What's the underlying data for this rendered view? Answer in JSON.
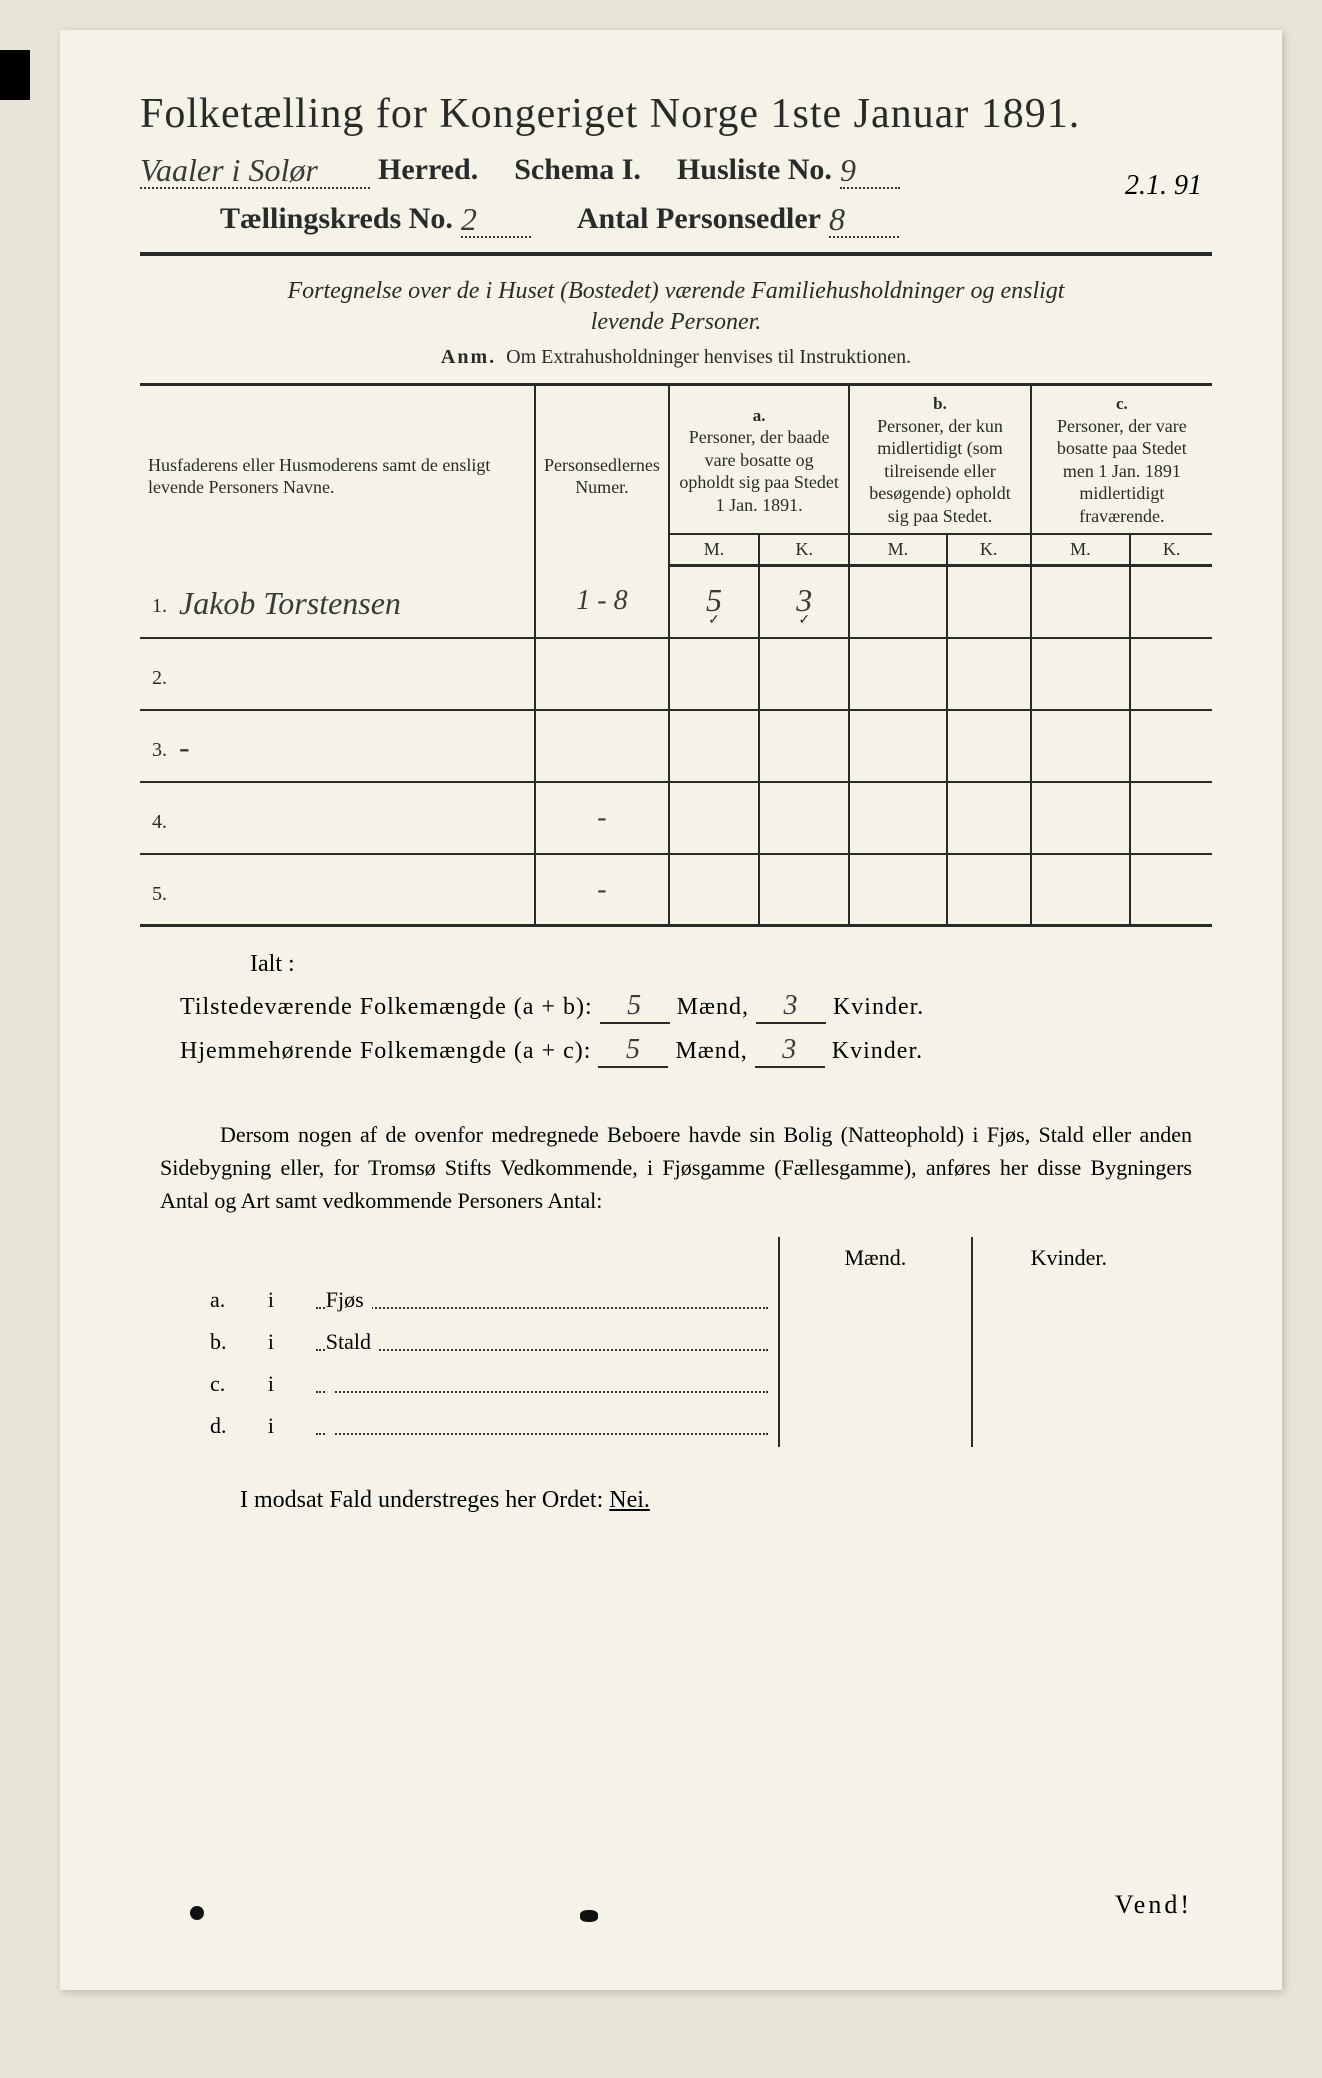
{
  "title": "Folketælling for Kongeriget Norge 1ste Januar 1891.",
  "header": {
    "herred_value": "Vaaler i Solør",
    "herred_label": "Herred.",
    "schema_label": "Schema I.",
    "husliste_label": "Husliste No.",
    "husliste_value": "9",
    "kreds_label": "Tællingskreds No.",
    "kreds_value": "2",
    "personsedler_label": "Antal Personsedler",
    "personsedler_value": "8",
    "date_annotation": "2.1. 91"
  },
  "subtitle_line1": "Fortegnelse over de i Huset (Bostedet) værende Familiehusholdninger og ensligt",
  "subtitle_line2": "levende Personer.",
  "anm_label": "Anm.",
  "anm_text": "Om Extrahusholdninger henvises til Instruktionen.",
  "table": {
    "col_name": "Husfaderens eller Husmoderens samt de ensligt levende Personers Navne.",
    "col_num": "Personsedlernes Numer.",
    "col_a_label": "a.",
    "col_a_text": "Personer, der baade vare bosatte og opholdt sig paa Stedet 1 Jan. 1891.",
    "col_b_label": "b.",
    "col_b_text": "Personer, der kun midlertidigt (som tilreisende eller besøgende) opholdt sig paa Stedet.",
    "col_c_label": "c.",
    "col_c_text": "Personer, der vare bosatte paa Stedet men 1 Jan. 1891 midlertidigt fraværende.",
    "mk_m": "M.",
    "mk_k": "K.",
    "rows": [
      {
        "n": "1.",
        "name": "Jakob Torstensen",
        "num": "1 - 8",
        "a_m": "5",
        "a_k": "3",
        "b_m": "",
        "b_k": "",
        "c_m": "",
        "c_k": ""
      },
      {
        "n": "2.",
        "name": "",
        "num": "",
        "a_m": "",
        "a_k": "",
        "b_m": "",
        "b_k": "",
        "c_m": "",
        "c_k": ""
      },
      {
        "n": "3.",
        "name": "-",
        "num": "",
        "a_m": "",
        "a_k": "",
        "b_m": "",
        "b_k": "",
        "c_m": "",
        "c_k": ""
      },
      {
        "n": "4.",
        "name": "",
        "num": "-",
        "a_m": "",
        "a_k": "",
        "b_m": "",
        "b_k": "",
        "c_m": "",
        "c_k": ""
      },
      {
        "n": "5.",
        "name": "",
        "num": "-",
        "a_m": "",
        "a_k": "",
        "b_m": "",
        "b_k": "",
        "c_m": "",
        "c_k": ""
      }
    ]
  },
  "ialt": "Ialt :",
  "summary": {
    "line1_label": "Tilstedeværende Folkemængde (a + b):",
    "line2_label": "Hjemmehørende Folkemængde (a + c):",
    "maend": "Mænd,",
    "kvinder": "Kvinder.",
    "l1_m": "5",
    "l1_k": "3",
    "l2_m": "5",
    "l2_k": "3"
  },
  "paragraph": "Dersom nogen af de ovenfor medregnede Beboere havde sin Bolig (Natteophold) i Fjøs, Stald eller anden Sidebygning eller, for Tromsø Stifts Vedkommende, i Fjøsgamme (Fællesgamme), anføres her disse Bygningers Antal og Art samt vedkommende Personers Antal:",
  "lower": {
    "maend": "Mænd.",
    "kvinder": "Kvinder.",
    "rows": [
      {
        "k": "a.",
        "i": "i",
        "label": "Fjøs"
      },
      {
        "k": "b.",
        "i": "i",
        "label": "Stald"
      },
      {
        "k": "c.",
        "i": "i",
        "label": ""
      },
      {
        "k": "d.",
        "i": "i",
        "label": ""
      }
    ]
  },
  "modsat": "I modsat Fald understreges her Ordet:",
  "nei": "Nei.",
  "vend": "Vend!",
  "colors": {
    "page_bg": "#f5f2e8",
    "body_bg": "#e8e4d8",
    "ink": "#2a2a2a",
    "handwriting": "#3a3a3a"
  }
}
